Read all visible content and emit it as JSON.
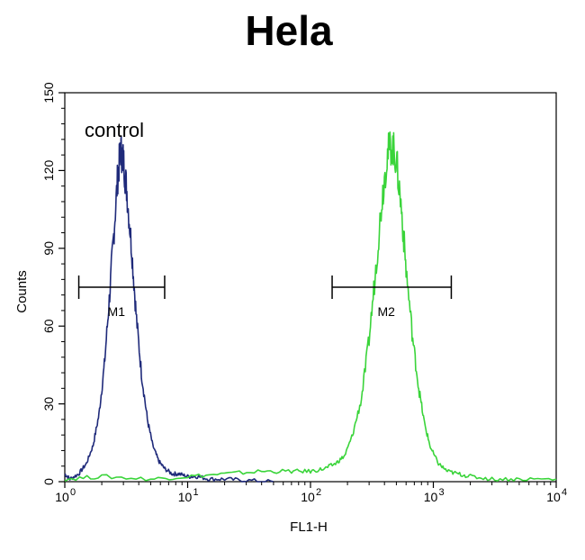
{
  "chart_data": {
    "type": "line",
    "title": "Hela",
    "xlabel": "FL1-H",
    "ylabel": "Counts",
    "x_scale": "log",
    "xlim": [
      1,
      10000
    ],
    "ylim": [
      0,
      150
    ],
    "x_ticks": [
      {
        "base": "10",
        "exp": "0"
      },
      {
        "base": "10",
        "exp": "1"
      },
      {
        "base": "10",
        "exp": "2"
      },
      {
        "base": "10",
        "exp": "3"
      },
      {
        "base": "10",
        "exp": "4"
      }
    ],
    "y_ticks": [
      "0",
      "30",
      "60",
      "90",
      "120",
      "150"
    ],
    "annotation": "control",
    "markers": [
      {
        "label": "M1",
        "x_range": [
          1.3,
          6.5
        ],
        "y": 75
      },
      {
        "label": "M2",
        "x_range": [
          150,
          1400
        ],
        "y": 75
      }
    ],
    "series": [
      {
        "color": "#1f2a7a",
        "x": [
          1,
          1.1,
          1.3,
          1.5,
          1.7,
          1.9,
          2.1,
          2.3,
          2.5,
          2.7,
          2.85,
          3.0,
          3.2,
          3.5,
          3.8,
          4.2,
          4.7,
          5.2,
          5.8,
          6.5,
          7.5,
          8.5,
          10,
          12,
          15,
          20,
          30,
          50
        ],
        "y": [
          3,
          1,
          3,
          7,
          14,
          26,
          45,
          70,
          95,
          118,
          128,
          124,
          112,
          90,
          65,
          42,
          24,
          14,
          8,
          5,
          3,
          3,
          2,
          2,
          1,
          1,
          0.5,
          0
        ]
      },
      {
        "color": "#3ad43a",
        "x": [
          1,
          2,
          5,
          10,
          20,
          40,
          70,
          100,
          130,
          160,
          190,
          220,
          260,
          300,
          340,
          380,
          420,
          460,
          500,
          550,
          600,
          680,
          760,
          850,
          950,
          1100,
          1300,
          1600,
          2000,
          3000,
          5000,
          10000
        ],
        "y": [
          1,
          2,
          1,
          2,
          3,
          4,
          4,
          4,
          5,
          7,
          10,
          18,
          32,
          55,
          82,
          108,
          126,
          130,
          124,
          105,
          82,
          55,
          36,
          22,
          13,
          7,
          4,
          3,
          2,
          1,
          1,
          1
        ]
      }
    ]
  }
}
